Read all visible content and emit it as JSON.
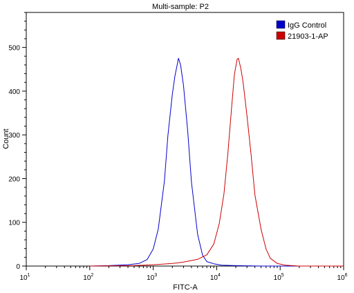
{
  "chart_data": {
    "type": "line",
    "title": "Multi-sample: P2",
    "xlabel": "FITC-A",
    "ylabel": "Count",
    "x_scale": "log",
    "xlim": [
      10,
      1000000
    ],
    "ylim": [
      0,
      580
    ],
    "x_ticks": [
      {
        "value": 10,
        "base": "10",
        "exp": "1"
      },
      {
        "value": 100,
        "base": "10",
        "exp": "2"
      },
      {
        "value": 1000,
        "base": "10",
        "exp": "3"
      },
      {
        "value": 10000,
        "base": "10",
        "exp": "4"
      },
      {
        "value": 100000,
        "base": "10",
        "exp": "5"
      },
      {
        "value": 1000000,
        "base": "10",
        "exp": "6"
      }
    ],
    "y_ticks": [
      0,
      100,
      200,
      300,
      400,
      500
    ],
    "grid": false,
    "legend_position": "top-right",
    "series": [
      {
        "name": "IgG Control",
        "color": "#0000cc",
        "x": [
          100,
          200,
          400,
          600,
          800,
          1000,
          1200,
          1500,
          1700,
          2000,
          2200,
          2400,
          2500,
          2700,
          3000,
          3500,
          4000,
          5000,
          6000,
          7000,
          9000,
          12000,
          20000,
          50000,
          100000,
          1000000
        ],
        "y": [
          0,
          1,
          3,
          6,
          15,
          40,
          85,
          190,
          290,
          390,
          440,
          470,
          478,
          455,
          405,
          305,
          195,
          75,
          25,
          10,
          5,
          2,
          1,
          0,
          0,
          0
        ]
      },
      {
        "name": "21903-1-AP",
        "color": "#cc0000",
        "x": [
          100,
          500,
          1000,
          2000,
          3000,
          5000,
          7000,
          9000,
          11000,
          13000,
          15000,
          17000,
          19000,
          21000,
          22000,
          24000,
          26000,
          30000,
          35000,
          40000,
          50000,
          60000,
          70000,
          90000,
          120000,
          200000,
          1000000
        ],
        "y": [
          0,
          1,
          3,
          6,
          9,
          15,
          25,
          50,
          100,
          170,
          260,
          350,
          430,
          470,
          480,
          460,
          425,
          340,
          245,
          160,
          85,
          40,
          18,
          6,
          2,
          0,
          0
        ]
      }
    ]
  }
}
